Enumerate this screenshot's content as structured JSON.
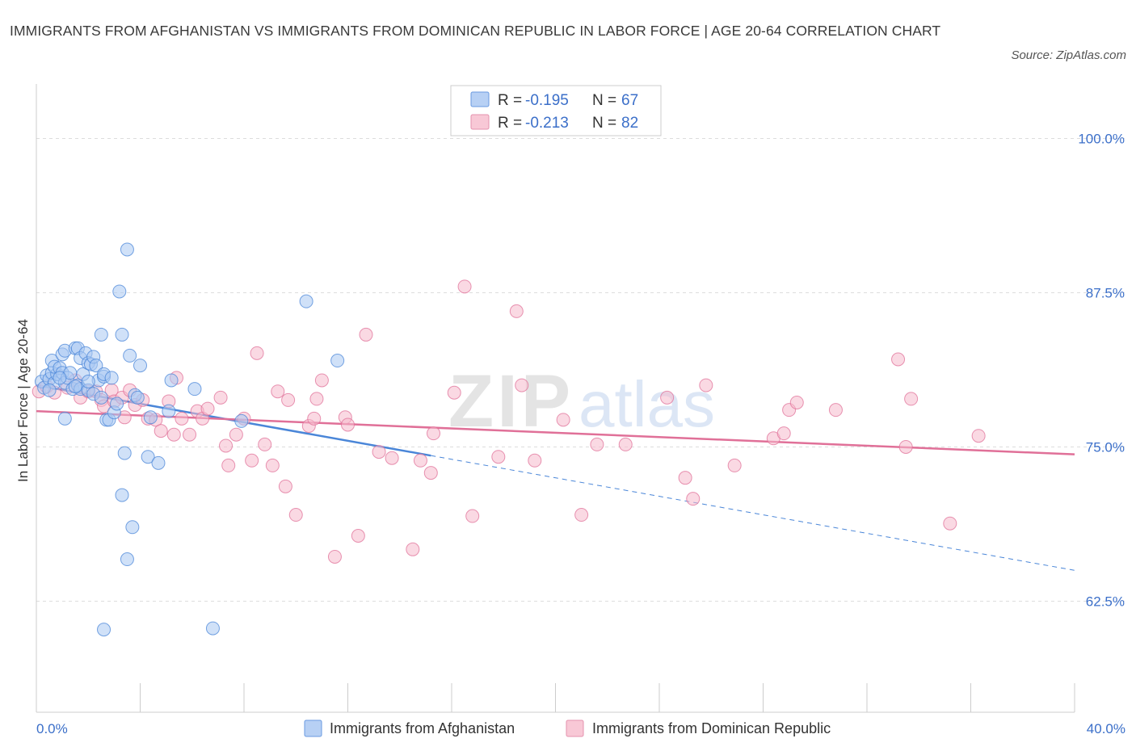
{
  "title": "IMMIGRANTS FROM AFGHANISTAN VS IMMIGRANTS FROM DOMINICAN REPUBLIC IN LABOR FORCE | AGE 20-64 CORRELATION CHART",
  "source": "Source: ZipAtlas.com",
  "watermark": {
    "zip": "ZIP",
    "atlas": "atlas"
  },
  "colors": {
    "blue": "#4a86d8",
    "blue_fill": "#a9c8f2",
    "pink": "#e07098",
    "pink_fill": "#f6b9cc",
    "axis_text": "#3b6fc9",
    "grid": "#dddddd"
  },
  "legend": {
    "r_label": "R =",
    "n_label": "N =",
    "rows": [
      {
        "r": "-0.195",
        "n": "67"
      },
      {
        "r": "-0.213",
        "n": "82"
      }
    ]
  },
  "bottom_legend": [
    "Immigrants from Afghanistan",
    "Immigrants from Dominican Republic"
  ],
  "chart_data": {
    "type": "scatter",
    "title": "IMMIGRANTS FROM AFGHANISTAN VS IMMIGRANTS FROM DOMINICAN REPUBLIC IN LABOR FORCE | AGE 20-64 CORRELATION CHART",
    "xlabel": "",
    "ylabel": "In Labor Force | Age 20-64",
    "xlim": [
      0,
      40
    ],
    "ylim": [
      53.5,
      103.5
    ],
    "x_tick_labels": [
      "0.0%",
      "40.0%"
    ],
    "y_ticks": [
      62.5,
      75.0,
      87.5,
      100.0
    ],
    "y_tick_labels": [
      "62.5%",
      "75.0%",
      "87.5%",
      "100.0%"
    ],
    "grid": true,
    "legend_position": "top-center",
    "series": [
      {
        "name": "Immigrants from Afghanistan",
        "R": -0.195,
        "N": 67,
        "trend": {
          "x0": 0,
          "y0": 80.0,
          "x1": 15.2,
          "y1": 74.3,
          "dashed_to_x": 40,
          "dashed_to_y": 65.0
        },
        "points": [
          [
            0.2,
            80.3
          ],
          [
            0.3,
            79.8
          ],
          [
            0.4,
            80.8
          ],
          [
            0.5,
            80.5
          ],
          [
            0.6,
            81.0
          ],
          [
            0.7,
            80.2
          ],
          [
            0.8,
            80.9
          ],
          [
            0.6,
            82.0
          ],
          [
            0.7,
            81.5
          ],
          [
            0.9,
            81.4
          ],
          [
            1.0,
            81.0
          ],
          [
            1.0,
            82.5
          ],
          [
            1.1,
            80.2
          ],
          [
            1.1,
            82.8
          ],
          [
            1.2,
            80.6
          ],
          [
            1.3,
            81.0
          ],
          [
            1.4,
            79.7
          ],
          [
            1.5,
            83.0
          ],
          [
            1.6,
            83.0
          ],
          [
            1.6,
            80.0
          ],
          [
            1.7,
            82.2
          ],
          [
            1.7,
            79.7
          ],
          [
            1.8,
            80.9
          ],
          [
            1.9,
            82.6
          ],
          [
            2.0,
            79.6
          ],
          [
            2.0,
            81.8
          ],
          [
            2.1,
            81.7
          ],
          [
            2.2,
            82.3
          ],
          [
            2.3,
            81.6
          ],
          [
            2.2,
            79.3
          ],
          [
            2.4,
            80.4
          ],
          [
            2.5,
            79.0
          ],
          [
            2.6,
            80.7
          ],
          [
            2.6,
            80.9
          ],
          [
            2.5,
            84.1
          ],
          [
            2.7,
            77.2
          ],
          [
            2.8,
            77.2
          ],
          [
            2.9,
            80.6
          ],
          [
            3.0,
            77.8
          ],
          [
            3.1,
            78.5
          ],
          [
            3.2,
            87.6
          ],
          [
            3.3,
            84.1
          ],
          [
            3.3,
            71.1
          ],
          [
            3.4,
            74.5
          ],
          [
            3.5,
            91.0
          ],
          [
            3.5,
            65.9
          ],
          [
            3.6,
            82.4
          ],
          [
            3.7,
            68.5
          ],
          [
            3.8,
            79.2
          ],
          [
            3.9,
            79.0
          ],
          [
            4.0,
            81.6
          ],
          [
            4.3,
            74.2
          ],
          [
            4.4,
            77.4
          ],
          [
            4.7,
            73.7
          ],
          [
            5.1,
            77.9
          ],
          [
            5.2,
            80.4
          ],
          [
            6.1,
            79.7
          ],
          [
            6.8,
            60.3
          ],
          [
            7.9,
            77.1
          ],
          [
            10.4,
            86.8
          ],
          [
            11.6,
            82.0
          ],
          [
            2.6,
            60.2
          ],
          [
            1.1,
            77.3
          ],
          [
            0.5,
            79.6
          ],
          [
            0.9,
            80.6
          ],
          [
            1.5,
            79.9
          ],
          [
            2.0,
            80.3
          ]
        ]
      },
      {
        "name": "Immigrants from Dominican Republic",
        "R": -0.213,
        "N": 82,
        "trend": {
          "x0": 0,
          "y0": 77.9,
          "x1": 40,
          "y1": 74.4
        },
        "points": [
          [
            0.1,
            79.5
          ],
          [
            0.4,
            79.9
          ],
          [
            0.7,
            79.4
          ],
          [
            1.2,
            79.8
          ],
          [
            1.5,
            80.4
          ],
          [
            1.7,
            79.0
          ],
          [
            2.0,
            79.5
          ],
          [
            2.3,
            79.5
          ],
          [
            2.5,
            78.8
          ],
          [
            2.6,
            78.3
          ],
          [
            2.9,
            79.6
          ],
          [
            3.0,
            78.7
          ],
          [
            3.3,
            79.0
          ],
          [
            3.4,
            77.4
          ],
          [
            3.6,
            79.6
          ],
          [
            3.8,
            78.4
          ],
          [
            4.1,
            78.8
          ],
          [
            4.3,
            77.3
          ],
          [
            4.6,
            77.2
          ],
          [
            4.8,
            76.3
          ],
          [
            5.1,
            78.7
          ],
          [
            5.3,
            76.0
          ],
          [
            5.4,
            80.6
          ],
          [
            5.6,
            77.3
          ],
          [
            5.9,
            76.0
          ],
          [
            6.2,
            77.9
          ],
          [
            6.4,
            77.3
          ],
          [
            6.6,
            78.1
          ],
          [
            7.1,
            79.0
          ],
          [
            7.3,
            75.1
          ],
          [
            7.4,
            73.5
          ],
          [
            7.7,
            76.0
          ],
          [
            8.0,
            77.3
          ],
          [
            8.3,
            73.9
          ],
          [
            8.5,
            82.6
          ],
          [
            8.8,
            75.2
          ],
          [
            9.1,
            73.5
          ],
          [
            9.3,
            79.5
          ],
          [
            9.6,
            71.8
          ],
          [
            9.7,
            78.8
          ],
          [
            10.0,
            69.5
          ],
          [
            10.5,
            76.7
          ],
          [
            10.7,
            77.3
          ],
          [
            10.8,
            78.9
          ],
          [
            11.0,
            80.4
          ],
          [
            11.5,
            66.1
          ],
          [
            11.9,
            77.4
          ],
          [
            12.0,
            76.8
          ],
          [
            12.4,
            67.8
          ],
          [
            12.7,
            84.1
          ],
          [
            13.2,
            74.6
          ],
          [
            13.7,
            74.1
          ],
          [
            14.5,
            66.7
          ],
          [
            14.8,
            73.9
          ],
          [
            15.2,
            72.9
          ],
          [
            15.3,
            76.1
          ],
          [
            16.1,
            79.4
          ],
          [
            16.5,
            88.0
          ],
          [
            16.8,
            69.4
          ],
          [
            17.8,
            74.2
          ],
          [
            18.5,
            86.0
          ],
          [
            18.7,
            80.0
          ],
          [
            19.2,
            73.9
          ],
          [
            20.3,
            77.2
          ],
          [
            21.0,
            69.5
          ],
          [
            21.6,
            75.2
          ],
          [
            22.7,
            75.2
          ],
          [
            24.3,
            79.0
          ],
          [
            25.0,
            72.5
          ],
          [
            25.3,
            70.8
          ],
          [
            25.8,
            80.0
          ],
          [
            26.9,
            73.5
          ],
          [
            28.4,
            75.7
          ],
          [
            28.8,
            76.1
          ],
          [
            29.0,
            78.0
          ],
          [
            29.3,
            78.6
          ],
          [
            30.8,
            78.0
          ],
          [
            33.2,
            82.1
          ],
          [
            33.5,
            75.0
          ],
          [
            33.7,
            78.9
          ],
          [
            35.2,
            68.8
          ],
          [
            36.3,
            75.9
          ]
        ]
      }
    ]
  }
}
